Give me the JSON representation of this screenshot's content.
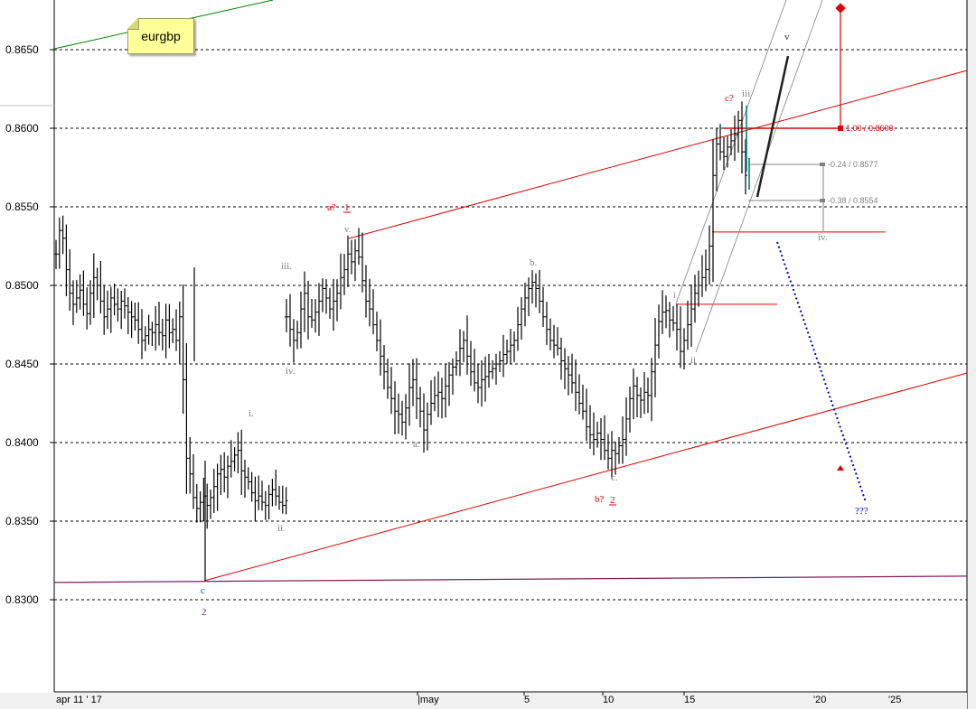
{
  "symbol_note": "eurgbp",
  "chart_data": {
    "type": "bar",
    "subtype": "ohlc",
    "symbol": "eurgbp",
    "x_axis_labels": [
      "apr 11 ' 17",
      "|may",
      "5",
      "10",
      "15",
      "'20",
      "'25"
    ],
    "y_tick_labels": [
      "0.8650",
      "0.8600",
      "0.8550",
      "0.8500",
      "0.8450",
      "0.8400",
      "0.8350",
      "0.8300"
    ],
    "y_ticks": [
      0.865,
      0.86,
      0.855,
      0.85,
      0.845,
      0.84,
      0.835,
      0.83
    ],
    "ylim": [
      0.8263,
      0.868
    ],
    "grid": "horizontal-dashed",
    "series": [
      {
        "segment": 1,
        "closes": [
          0.852,
          0.8535,
          0.853,
          0.851,
          0.8495,
          0.8488,
          0.8492,
          0.8497,
          0.8488,
          0.8482,
          0.8495,
          0.8505,
          0.85,
          0.849,
          0.848,
          0.8485,
          0.8492,
          0.8488,
          0.8485,
          0.849,
          0.8487,
          0.8483,
          0.848,
          0.8478,
          0.8472,
          0.8465,
          0.8468,
          0.8472,
          0.847,
          0.8475,
          0.847,
          0.8468,
          0.8478,
          0.847,
          0.8472,
          0.8465,
          0.848,
          0.844,
          0.839,
          0.838,
          0.8365,
          0.8358,
          0.8362,
          0.8366,
          0.836,
          0.8365,
          0.8372,
          0.838,
          0.8383,
          0.8378,
          0.8385,
          0.8388,
          0.8392,
          0.8395,
          0.8382,
          0.8378,
          0.8375,
          0.8368,
          0.8363,
          0.8366,
          0.8362,
          0.836,
          0.8367,
          0.837,
          0.8366,
          0.8362,
          0.836,
          0.8363
        ]
      },
      {
        "segment": 2,
        "closes": [
          0.848,
          0.8472,
          0.8465,
          0.847,
          0.8485,
          0.8495,
          0.848,
          0.8478,
          0.8483,
          0.849,
          0.8498,
          0.8492,
          0.8485,
          0.849,
          0.8495,
          0.8505,
          0.851,
          0.852,
          0.8515,
          0.8522,
          0.8518,
          0.8503,
          0.849,
          0.8485,
          0.8475,
          0.8465,
          0.8455,
          0.8445,
          0.8435,
          0.8428,
          0.842,
          0.8418,
          0.8413,
          0.8422,
          0.8435,
          0.844,
          0.8428,
          0.842,
          0.8408,
          0.8418,
          0.8425,
          0.843,
          0.8432,
          0.8428,
          0.8436,
          0.8443,
          0.8448,
          0.8452,
          0.846,
          0.8465,
          0.8455,
          0.8445,
          0.8438,
          0.8435,
          0.844,
          0.8442,
          0.8445,
          0.8447,
          0.845,
          0.8452,
          0.8456,
          0.8458,
          0.8462,
          0.8465,
          0.8475,
          0.8485,
          0.8492,
          0.8498,
          0.8502,
          0.8498,
          0.849,
          0.848,
          0.8472,
          0.8465,
          0.8462,
          0.846,
          0.8452,
          0.8447,
          0.8443,
          0.8438,
          0.8432,
          0.8425,
          0.842,
          0.841,
          0.8405,
          0.8402,
          0.8406,
          0.8402,
          0.8395,
          0.839,
          0.8395,
          0.8393,
          0.8398,
          0.8402,
          0.8415,
          0.8428,
          0.8436,
          0.843,
          0.8427,
          0.8432,
          0.843,
          0.8445,
          0.8462,
          0.8477,
          0.8483,
          0.8484,
          0.8478,
          0.8476,
          0.8472,
          0.8458,
          0.8465,
          0.8475,
          0.8485,
          0.8495,
          0.85,
          0.8505,
          0.851,
          0.8525,
          0.857,
          0.859,
          0.8585,
          0.8582,
          0.8588,
          0.8592,
          0.8596,
          0.8605,
          0.8585,
          0.857
        ]
      }
    ],
    "horizontal_lines": [
      {
        "name": "baseline",
        "values": [
          0.8311,
          0.8315
        ],
        "color": "#7f1f5f"
      },
      {
        "name": "wave-i-level",
        "value": 0.8488,
        "color": "#e00000"
      },
      {
        "name": "wave-iv-level",
        "value": 0.8534,
        "color": "#e00000"
      },
      {
        "name": "target-1.00",
        "value": 0.86,
        "color": "#e00000"
      }
    ],
    "fib_projection_labels": [
      "1.00 / 0.8600",
      "-0.24 / 0.8577",
      "-0.38 / 0.8554"
    ],
    "wave_labels": [
      "c",
      "2",
      "i.",
      "ii.",
      "iii.",
      "iv.",
      "v.",
      "a?",
      "1",
      "a.",
      "b.",
      "c.",
      "b?",
      "2",
      "i",
      "ii",
      "c?",
      "iii",
      "iv.",
      "v",
      "???"
    ],
    "colors": {
      "bars": "#000000",
      "channel": "#e00000",
      "trend_green": "#008000",
      "baseline": "#7f1f5f",
      "forecast": "#0000cc",
      "grid": "#000000"
    }
  }
}
